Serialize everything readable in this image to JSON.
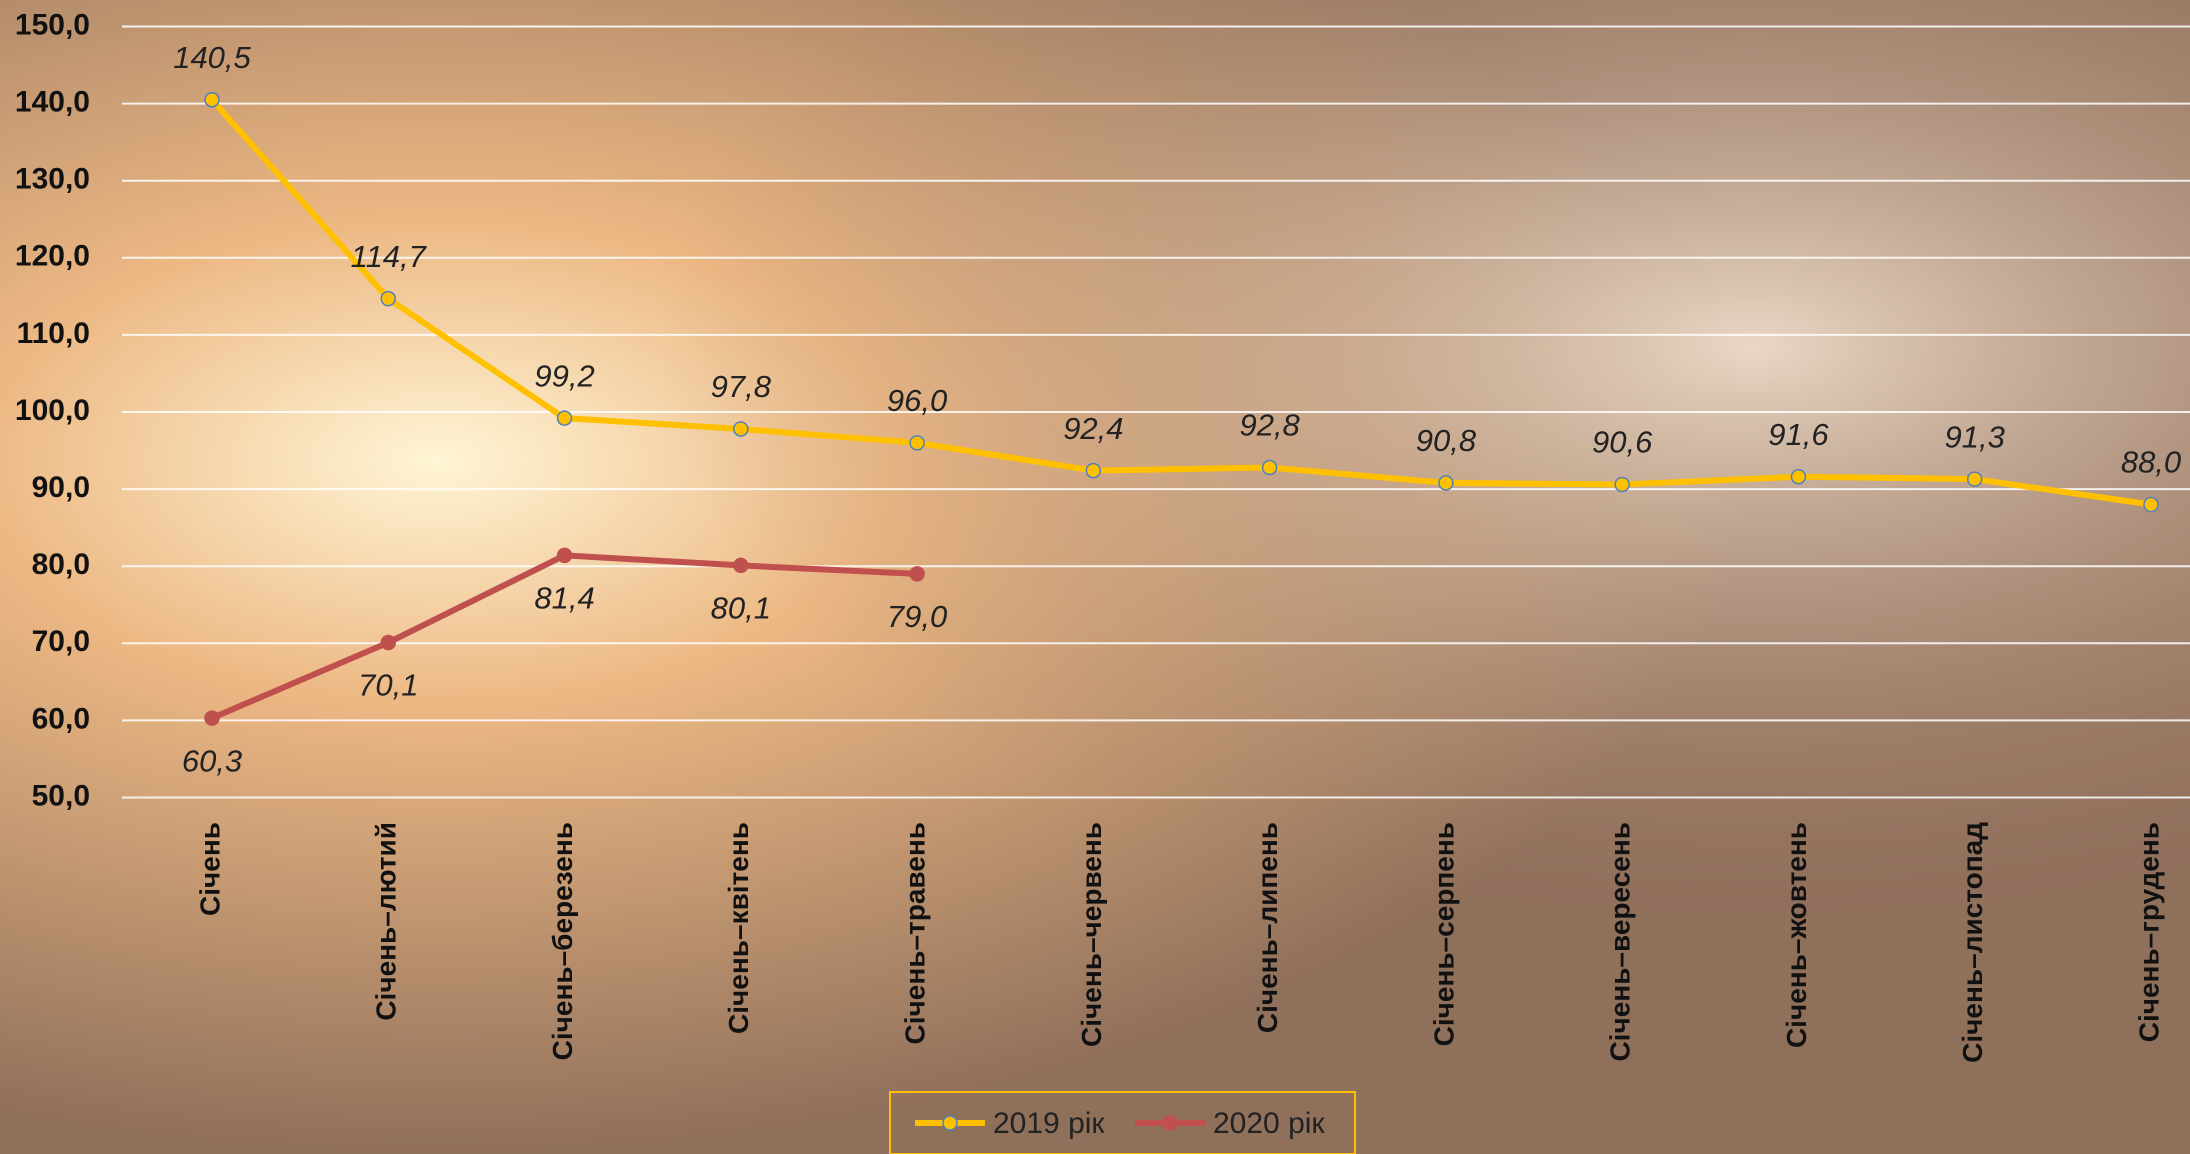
{
  "chart_data": {
    "type": "line",
    "categories": [
      "Січень",
      "Січень–лютий",
      "Січень–березень",
      "Січень–квітень",
      "Січень–травень",
      "Січень–червень",
      "Січень–липень",
      "Січень–серпень",
      "Січень–вересень",
      "Січень–жовтень",
      "Січень–листопад",
      "Січень–грудень"
    ],
    "series": [
      {
        "name": "2019 рік",
        "color": "#ffc000",
        "values": [
          140.5,
          114.7,
          99.2,
          97.8,
          96.0,
          92.4,
          92.8,
          90.8,
          90.6,
          91.6,
          91.3,
          88.0
        ],
        "value_labels": [
          "140,5",
          "114,7",
          "99,2",
          "97,8",
          "96,0",
          "92,4",
          "92,8",
          "90,8",
          "90,6",
          "91,6",
          "91,3",
          "88,0"
        ]
      },
      {
        "name": "2020 рік",
        "color": "#c0504d",
        "values": [
          60.3,
          70.1,
          81.4,
          80.1,
          79.0,
          null,
          null,
          null,
          null,
          null,
          null,
          null
        ],
        "value_labels": [
          "60,3",
          "70,1",
          "81,4",
          "80,1",
          "79,0",
          null,
          null,
          null,
          null,
          null,
          null,
          null
        ]
      }
    ],
    "ylim": [
      50,
      150
    ],
    "yticks": [
      {
        "value": 50,
        "label": "50,0"
      },
      {
        "value": 60,
        "label": "60,0"
      },
      {
        "value": 70,
        "label": "70,0"
      },
      {
        "value": 80,
        "label": "80,0"
      },
      {
        "value": 90,
        "label": "90,0"
      },
      {
        "value": 100,
        "label": "100,0"
      },
      {
        "value": 110,
        "label": "110,0"
      },
      {
        "value": 120,
        "label": "120,0"
      },
      {
        "value": 130,
        "label": "130,0"
      },
      {
        "value": 140,
        "label": "140,0"
      },
      {
        "value": 150,
        "label": "150,0"
      }
    ],
    "grid": true,
    "legend": "bottom"
  }
}
